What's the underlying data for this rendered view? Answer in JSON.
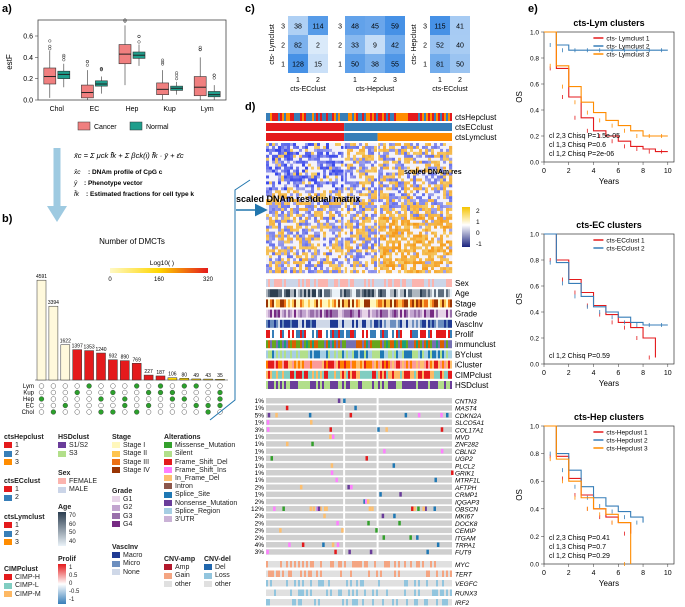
{
  "panels": {
    "a": "a)",
    "b": "b)",
    "c": "c)",
    "d": "d)",
    "e": "e)"
  },
  "colors": {
    "cancer": "#f07f7f",
    "normal": "#1f9e8c",
    "red": "#e41a1c",
    "blue": "#377eb8",
    "orange": "#ff8c00",
    "heatLow": "#1a237e",
    "heatMid": "#ffffff",
    "heatHigh": "#f5c400"
  },
  "panelA": {
    "ylabel": "estF",
    "yticks": [
      "0.6",
      "0.4",
      "0.2",
      "0.0"
    ],
    "categories": [
      "Chol",
      "EC",
      "Hep",
      "Kup",
      "Lym"
    ],
    "legend": {
      "cancer": "Cancer",
      "normal": "Normal"
    },
    "box_data": [
      {
        "cat": "Chol",
        "cancer": {
          "q1": 0.15,
          "med": 0.22,
          "q3": 0.3,
          "lo": 0.02,
          "hi": 0.46
        },
        "normal": {
          "q1": 0.2,
          "med": 0.24,
          "q3": 0.27,
          "lo": 0.12,
          "hi": 0.34
        }
      },
      {
        "cat": "EC",
        "cancer": {
          "q1": 0.02,
          "med": 0.07,
          "q3": 0.14,
          "lo": 0.0,
          "hi": 0.28
        },
        "normal": {
          "q1": 0.13,
          "med": 0.15,
          "q3": 0.18,
          "lo": 0.06,
          "hi": 0.22
        }
      },
      {
        "cat": "Hep",
        "cancer": {
          "q1": 0.34,
          "med": 0.43,
          "q3": 0.52,
          "lo": 0.14,
          "hi": 0.7
        },
        "normal": {
          "q1": 0.39,
          "med": 0.42,
          "q3": 0.45,
          "lo": 0.32,
          "hi": 0.52
        }
      },
      {
        "cat": "Kup",
        "cancer": {
          "q1": 0.05,
          "med": 0.1,
          "q3": 0.16,
          "lo": 0.0,
          "hi": 0.28
        },
        "normal": {
          "q1": 0.09,
          "med": 0.11,
          "q3": 0.13,
          "lo": 0.05,
          "hi": 0.17
        }
      },
      {
        "cat": "Lym",
        "cancer": {
          "q1": 0.04,
          "med": 0.12,
          "q3": 0.22,
          "lo": 0.0,
          "hi": 0.4
        },
        "normal": {
          "q1": 0.03,
          "med": 0.05,
          "q3": 0.08,
          "lo": 0.0,
          "hi": 0.14
        }
      }
    ]
  },
  "equation": {
    "line1": "x̄c = Σ μck f̄k + Σ βck(i) f̄k · ȳ + ε̄c",
    "def1": ": DNAm profile of CpG c",
    "def1sym": "x̄c",
    "def2": ": Phenotype vector",
    "def2sym": "ȳ",
    "def3": ": Estimated fractions for cell type k",
    "def3sym": "f̄k"
  },
  "panelB": {
    "title": "Number of DMCTs",
    "scale_title": "Log10( )",
    "scale_ticks": [
      "0",
      "160",
      "320"
    ],
    "rows": [
      "Lym",
      "Kup",
      "Hep",
      "EC",
      "Chol"
    ],
    "chart_data": {
      "type": "bar",
      "values": [
        4591,
        3394,
        1622,
        1397,
        1353,
        1240,
        932,
        890,
        769,
        227,
        187,
        106,
        80,
        49,
        43,
        35
      ],
      "labels": [
        "4591",
        "3394",
        "1622",
        "1397",
        "1353",
        "1240",
        "932",
        "890",
        "769",
        "227",
        "187",
        "106",
        "80",
        "49",
        "43",
        "35"
      ]
    }
  },
  "panelBLegend": {
    "ctsHepclust": {
      "title": "ctsHepclust",
      "items": [
        "1",
        "2",
        "3"
      ]
    },
    "ctsECclust": {
      "title": "ctsECclust",
      "items": [
        "1",
        "2"
      ]
    },
    "ctsLymclust": {
      "title": "ctsLymclust",
      "items": [
        "1",
        "2",
        "3"
      ]
    },
    "CIMPclust": {
      "title": "CIMPclust",
      "items": [
        "CIMP-H",
        "CIMP-L",
        "CIMP-M"
      ]
    },
    "HSDclust": {
      "title": "HSDclust",
      "items": [
        "S1/S2",
        "S3"
      ]
    },
    "Sex": {
      "title": "Sex",
      "items": [
        "FEMALE",
        "MALE"
      ]
    },
    "Age": {
      "title": "Age",
      "ticks": [
        "70",
        "60",
        "50",
        "40"
      ]
    },
    "Prolif": {
      "title": "Prolif",
      "ticks": [
        "1",
        "0.5",
        "0",
        "-0.5",
        "-1"
      ]
    },
    "Stage": {
      "title": "Stage",
      "items": [
        "Stage I",
        "Stage II",
        "Stage III",
        "Stage IV"
      ]
    },
    "Grade": {
      "title": "Grade",
      "items": [
        "G1",
        "G2",
        "G3",
        "G4"
      ]
    },
    "VascInv": {
      "title": "VascInv",
      "items": [
        "Macro",
        "Micro",
        "None"
      ]
    },
    "Alterations": {
      "title": "Alterations",
      "items": [
        "Missense_Mutation",
        "Silent",
        "Frame_Shift_Del",
        "Frame_Shift_Ins",
        "In_Frame_Del",
        "Intron",
        "Splice_Site",
        "Nonsense_Mutation",
        "Splice_Region",
        "3'UTR"
      ]
    },
    "CNVamp": {
      "title": "CNV-amp",
      "items": [
        "Amp",
        "Gain",
        "other"
      ]
    },
    "CNVdel": {
      "title": "CNV-del",
      "items": [
        "Del",
        "Loss",
        "other"
      ]
    }
  },
  "panelC": {
    "matrices": [
      {
        "ylabel": "cts- Lymclust",
        "xlabel": "cts-ECclust",
        "rows": [
          "3",
          "2",
          "1"
        ],
        "cols": [
          "1",
          "2"
        ],
        "values": [
          [
            38,
            114
          ],
          [
            82,
            2
          ],
          [
            128,
            15
          ]
        ]
      },
      {
        "ylabel": "",
        "xlabel": "cts-Hepclust",
        "rows": [
          "3",
          "2",
          "1"
        ],
        "cols": [
          "1",
          "2",
          "3"
        ],
        "values": [
          [
            48,
            45,
            59
          ],
          [
            33,
            9,
            42
          ],
          [
            50,
            38,
            55
          ]
        ]
      },
      {
        "ylabel": "cts- Hepclust",
        "xlabel": "cts-ECclust",
        "rows": [
          "3",
          "2",
          "1"
        ],
        "cols": [
          "1",
          "2"
        ],
        "values": [
          [
            115,
            41
          ],
          [
            52,
            40
          ],
          [
            81,
            50
          ]
        ]
      }
    ]
  },
  "panelD": {
    "top_labels": [
      "ctsHepclust",
      "ctsECclust",
      "ctsLymclust"
    ],
    "heat_legend_title": "scaled DNAm res",
    "heat_legend_ticks": [
      "2",
      "1",
      "0",
      "-1"
    ],
    "side_label": "scaled DNAm residual matrix",
    "annot_labels": [
      "Sex",
      "Age",
      "Stage",
      "Grade",
      "VascInv",
      "Prolif",
      "immunclust",
      "BYclust",
      "iCluster",
      "CIMPclust",
      "HSDclust"
    ],
    "genes": [
      "CNTN3",
      "MAST4",
      "CDKN2A",
      "SLCO5A1",
      "COL17A1",
      "MVD",
      "ZNF282",
      "CBLN2",
      "UGP2",
      "PLCL2",
      "GRIK1",
      "MTRF1L",
      "AFTPH",
      "CRMP1",
      "IQGAP3",
      "OBSCN",
      "MKI67",
      "DOCK8",
      "CEMIP",
      "ITGAM",
      "TRPA1",
      "FUT9"
    ],
    "percents": [
      "1%",
      "1%",
      "5%",
      "1%",
      "3%",
      "1%",
      "1%",
      "1%",
      "1%",
      "1%",
      "1%",
      "1%",
      "2%",
      "1%",
      "2%",
      "12%",
      "2%",
      "2%",
      "2%",
      "2%",
      "4%",
      "3%"
    ],
    "cnv_genes": [
      "MYC",
      "TERT",
      "VEGFC",
      "RUNX3",
      "IRF2"
    ]
  },
  "panelE": {
    "plots": [
      {
        "title": "cts-Lym clusters",
        "legend": [
          "cts- Lymclust 1",
          "cts- Lymclust 2",
          "cts- Lymclust 3"
        ],
        "stats": [
          "cl 2,3 Chisq P=1.5e-05",
          "cl 1,3 Chisq P=0.6",
          "cl 1,2 Chisq P=2e-06"
        ]
      },
      {
        "title": "cts-EC clusters",
        "legend": [
          "cts-ECclust 1",
          "cts-ECclust 2"
        ],
        "stats": [
          "cl 1,2 Chisq P=0.59"
        ]
      },
      {
        "title": "cts-Hep clusters",
        "legend": [
          "cts-Hepclust 1",
          "cts-Hepclust 2",
          "cts-Hepclust 3"
        ],
        "stats": [
          "cl 2,3 Chisq P=0.41",
          "cl 1,3 Chisq P=0.7",
          "cl 1,2 Chisq P=0.29"
        ]
      }
    ],
    "ylabel": "OS",
    "xlabel": "Years",
    "xticks": [
      "0",
      "2",
      "4",
      "6",
      "8",
      "10"
    ],
    "yticks": [
      "1.0",
      "0.8",
      "0.6",
      "0.4",
      "0.2",
      "0.0"
    ],
    "km_curves": [
      [
        {
          "t": [
            0,
            1,
            2,
            3,
            4,
            5,
            6,
            7,
            8,
            9,
            10
          ],
          "s": [
            1.0,
            0.72,
            0.5,
            0.34,
            0.24,
            0.2,
            0.16,
            0.12,
            0.1,
            0.08,
            0.08
          ]
        },
        {
          "t": [
            0,
            1,
            2,
            3,
            4,
            5,
            6,
            7,
            8,
            9,
            10
          ],
          "s": [
            1.0,
            0.9,
            0.86,
            0.86,
            0.86,
            0.86,
            0.86,
            0.86,
            0.86,
            0.86,
            0.86
          ]
        },
        {
          "t": [
            0,
            1,
            2,
            3,
            4,
            5,
            6,
            7,
            8,
            9,
            10
          ],
          "s": [
            1.0,
            0.74,
            0.58,
            0.46,
            0.38,
            0.32,
            0.28,
            0.24,
            0.2,
            0.2,
            0.2
          ]
        }
      ],
      [
        {
          "t": [
            0,
            1,
            2,
            3,
            4,
            5,
            6,
            7,
            8,
            9
          ],
          "s": [
            1.0,
            0.8,
            0.65,
            0.55,
            0.45,
            0.38,
            0.32,
            0.28,
            0.2,
            0.05
          ]
        },
        {
          "t": [
            0,
            1,
            2,
            3,
            4,
            5,
            6,
            7,
            8,
            9,
            10
          ],
          "s": [
            1.0,
            0.78,
            0.62,
            0.52,
            0.44,
            0.4,
            0.36,
            0.32,
            0.3,
            0.3,
            0.3
          ]
        }
      ],
      [
        {
          "t": [
            0,
            1,
            2,
            3,
            4,
            5,
            6,
            7
          ],
          "s": [
            1.0,
            0.78,
            0.62,
            0.5,
            0.4,
            0.34,
            0.3,
            0.22
          ]
        },
        {
          "t": [
            0,
            1,
            2,
            3,
            4,
            5,
            6,
            7,
            8
          ],
          "s": [
            1.0,
            0.8,
            0.68,
            0.56,
            0.48,
            0.42,
            0.38,
            0.34,
            0.3
          ]
        },
        {
          "t": [
            0,
            1,
            2,
            3,
            4,
            5,
            6,
            7
          ],
          "s": [
            1.0,
            0.76,
            0.6,
            0.48,
            0.4,
            0.36,
            0.3,
            0.0
          ]
        }
      ]
    ]
  }
}
